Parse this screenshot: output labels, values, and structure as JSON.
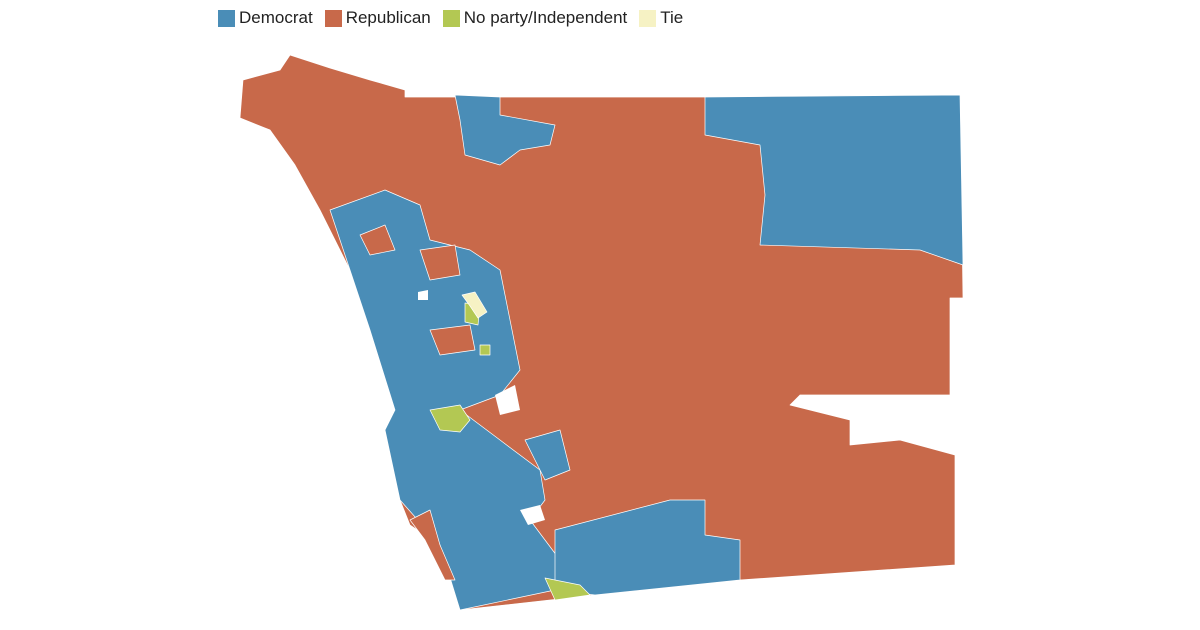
{
  "legend": {
    "items": [
      {
        "label": "Democrat",
        "color": "#4a8db7"
      },
      {
        "label": "Republican",
        "color": "#c8694a"
      },
      {
        "label": "No party/Independent",
        "color": "#b3c853"
      },
      {
        "label": "Tie",
        "color": "#f6f2c4"
      }
    ]
  }
}
